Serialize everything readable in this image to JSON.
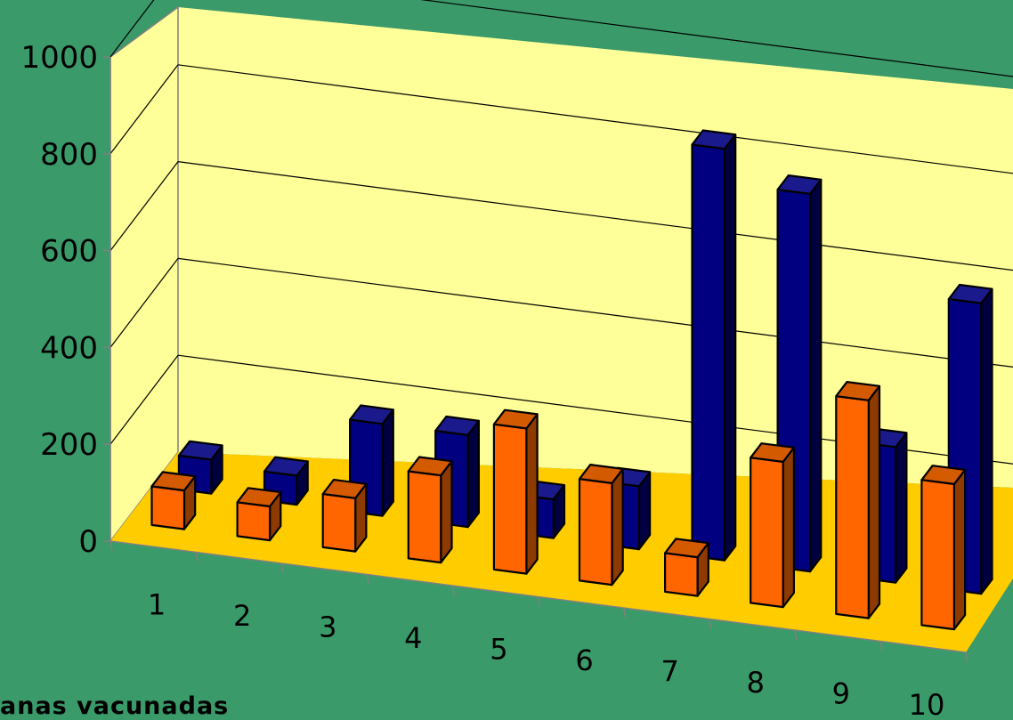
{
  "chart_data": {
    "type": "bar",
    "three_d": true,
    "title": "",
    "xlabel": "",
    "ylabel": "",
    "caption": "anas  vacunadas",
    "categories": [
      "1",
      "2",
      "3",
      "4",
      "5",
      "6",
      "7",
      "8",
      "9",
      "10"
    ],
    "ylim": [
      0,
      1000
    ],
    "yticks": [
      0,
      200,
      400,
      600,
      800,
      1000
    ],
    "grid": true,
    "legend": "none",
    "series": [
      {
        "color": "#000080",
        "values": [
          70,
          60,
          190,
          190,
          80,
          130,
          850,
          780,
          280,
          600
        ]
      },
      {
        "color": "#ff6600",
        "values": [
          80,
          70,
          110,
          180,
          300,
          210,
          80,
          300,
          450,
          300
        ]
      }
    ],
    "colors": {
      "background": "#3a9a6a",
      "back_wall": "#ffff99",
      "floor": "#ffcc00",
      "series_front": [
        "#000080",
        "#ff6600"
      ],
      "series_side": [
        "#000040",
        "#8c3a00"
      ],
      "series_top": [
        "#1a1a8c",
        "#d45a00"
      ]
    }
  }
}
